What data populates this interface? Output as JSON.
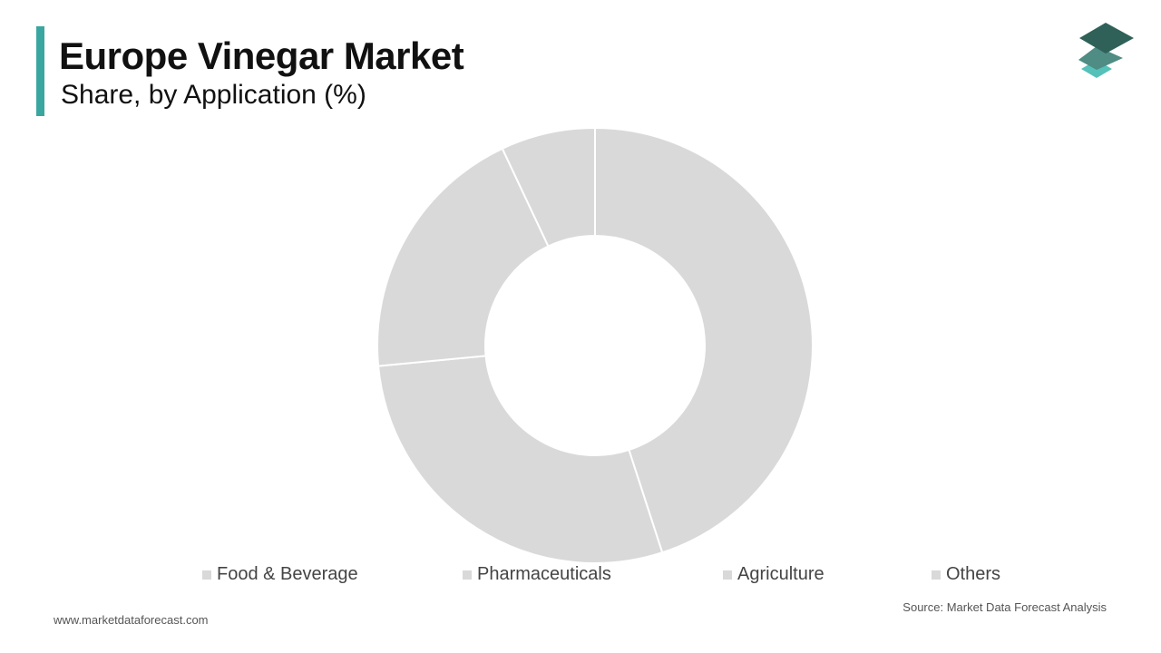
{
  "header": {
    "title": "Europe Vinegar Market",
    "subtitle": "Share, by Application (%)"
  },
  "logo": {
    "icon": "layers-logo-icon",
    "colors": [
      "#2f6158",
      "#4e8c84",
      "#55c1b9"
    ]
  },
  "chart_data": {
    "type": "pie",
    "donut": true,
    "title": "Europe Vinegar Market",
    "subtitle": "Share, by Application (%)",
    "categories": [
      "Food & Beverage",
      "Pharmaceuticals",
      "Agriculture",
      "Others"
    ],
    "values": [
      45,
      28.5,
      19.5,
      7
    ],
    "slice_color": "#d9d9d9",
    "swatch_color": "#d9d9d9",
    "separator_color": "#ffffff",
    "start_angle": "12 o'clock, clockwise",
    "legend_position": "bottom"
  },
  "footer": {
    "source": "Source: Market Data Forecast Analysis",
    "website": "www.marketdataforecast.com"
  }
}
